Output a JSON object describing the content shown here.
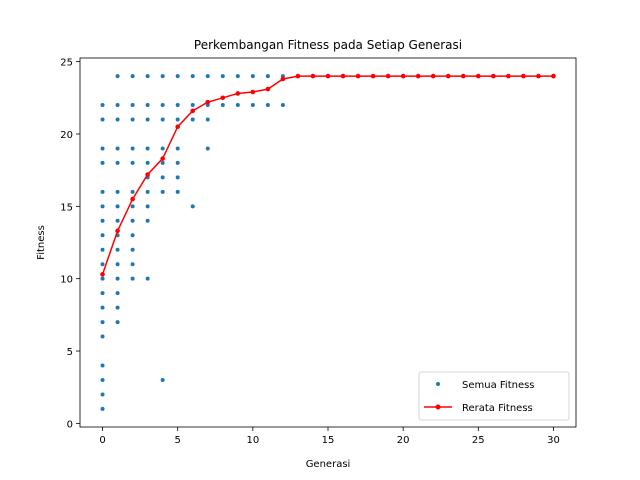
{
  "chart_data": {
    "type": "scatter",
    "title": "Perkembangan Fitness pada Setiap Generasi",
    "xlabel": "Generasi",
    "ylabel": "Fitness",
    "xlim": [
      -1.5,
      31.5
    ],
    "ylim": [
      -0.25,
      25.25
    ],
    "xticks": [
      0,
      5,
      10,
      15,
      20,
      25,
      30
    ],
    "yticks": [
      0,
      5,
      10,
      15,
      20,
      25
    ],
    "grid": false,
    "legend_position": "lower-right",
    "series": [
      {
        "name": "Semua Fitness",
        "kind": "scatter",
        "color": "#1f77b4",
        "points_by_generation": {
          "0": [
            1,
            2,
            3,
            4,
            6,
            7,
            8,
            9,
            10,
            11,
            12,
            13,
            14,
            15,
            16,
            18,
            19,
            21,
            22
          ],
          "1": [
            7,
            8,
            9,
            10,
            11,
            12,
            13,
            14,
            15,
            16,
            18,
            19,
            21,
            22,
            24
          ],
          "2": [
            10,
            11,
            12,
            13,
            14,
            15,
            16,
            18,
            19,
            21,
            22,
            24
          ],
          "3": [
            10,
            14,
            15,
            16,
            17,
            18,
            19,
            21,
            22,
            24
          ],
          "4": [
            3,
            16,
            17,
            18,
            19,
            21,
            22,
            24
          ],
          "5": [
            16,
            17,
            18,
            19,
            21,
            22,
            24
          ],
          "6": [
            15,
            21,
            22,
            24
          ],
          "7": [
            19,
            21,
            22,
            24
          ],
          "8": [
            22,
            24
          ],
          "9": [
            22,
            24
          ],
          "10": [
            22,
            24
          ],
          "11": [
            22,
            24
          ],
          "12": [
            22,
            24
          ],
          "13": [
            24
          ],
          "14": [
            24
          ],
          "15": [
            24
          ],
          "16": [
            24
          ],
          "17": [
            24
          ],
          "18": [
            24
          ],
          "19": [
            24
          ],
          "20": [
            24
          ],
          "21": [
            24
          ],
          "22": [
            24
          ],
          "23": [
            24
          ],
          "24": [
            24
          ],
          "25": [
            24
          ],
          "26": [
            24
          ],
          "27": [
            24
          ],
          "28": [
            24
          ],
          "29": [
            24
          ],
          "30": [
            24
          ]
        }
      },
      {
        "name": "Rerata Fitness",
        "kind": "line",
        "color": "#ff0000",
        "x": [
          0,
          1,
          2,
          3,
          4,
          5,
          6,
          7,
          8,
          9,
          10,
          11,
          12,
          13,
          14,
          15,
          16,
          17,
          18,
          19,
          20,
          21,
          22,
          23,
          24,
          25,
          26,
          27,
          28,
          29,
          30
        ],
        "values": [
          10.3,
          13.3,
          15.5,
          17.2,
          18.3,
          20.5,
          21.6,
          22.2,
          22.5,
          22.8,
          22.9,
          23.1,
          23.8,
          24,
          24,
          24,
          24,
          24,
          24,
          24,
          24,
          24,
          24,
          24,
          24,
          24,
          24,
          24,
          24,
          24,
          24
        ]
      }
    ]
  }
}
